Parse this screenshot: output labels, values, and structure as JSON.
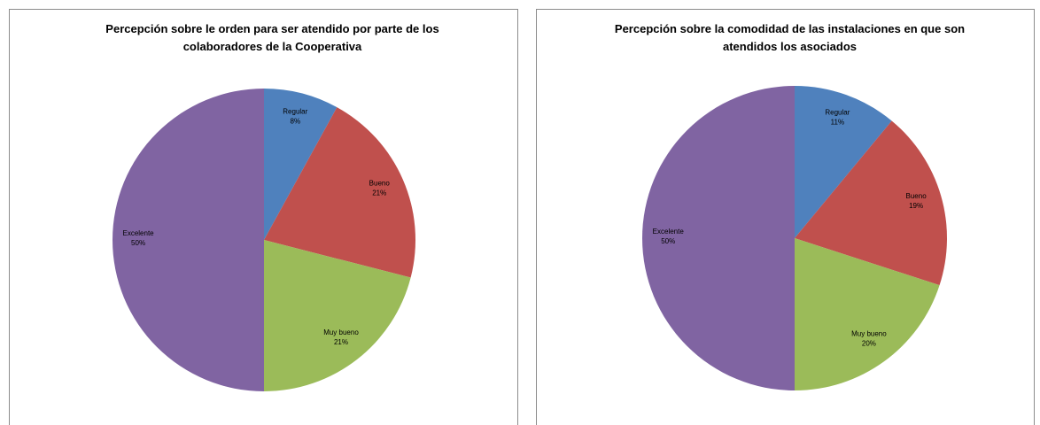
{
  "chart_data": [
    {
      "type": "pie",
      "title": "Percepción sobre le orden para ser atendido por parte de los colaboradores de la Cooperativa",
      "categories": [
        "Regular",
        "Bueno",
        "Muy bueno",
        "Excelente"
      ],
      "values": [
        8,
        21,
        21,
        50
      ],
      "value_labels": [
        "8%",
        "21%",
        "21%",
        "50%"
      ],
      "colors": [
        "#4f81bd",
        "#c0504d",
        "#9bbb59",
        "#8064a2"
      ]
    },
    {
      "type": "pie",
      "title": "Percepción sobre la comodidad de las instalaciones  en que son atendidos los asociados",
      "categories": [
        "Regular",
        "Bueno",
        "Muy bueno",
        "Excelente"
      ],
      "values": [
        11,
        19,
        20,
        50
      ],
      "value_labels": [
        "11%",
        "19%",
        "20%",
        "50%"
      ],
      "colors": [
        "#4f81bd",
        "#c0504d",
        "#9bbb59",
        "#8064a2"
      ]
    }
  ]
}
